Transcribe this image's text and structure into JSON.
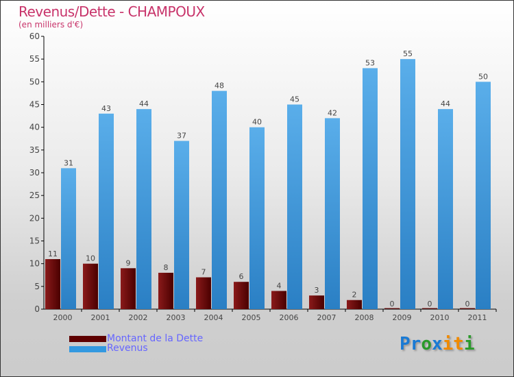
{
  "chart_data": {
    "type": "bar",
    "title": "Revenus/Dette - CHAMPOUX",
    "subtitle": "(en milliers d'€)",
    "categories": [
      "2000",
      "2001",
      "2002",
      "2003",
      "2004",
      "2005",
      "2006",
      "2007",
      "2008",
      "2009",
      "2010",
      "2011"
    ],
    "series": [
      {
        "name": "Montant de la Dette",
        "color": "#6b0a0a",
        "values": [
          11,
          10,
          9,
          8,
          7,
          6,
          4,
          3,
          2,
          0,
          0,
          0
        ]
      },
      {
        "name": "Revenus",
        "color": "#3a9be0",
        "values": [
          31,
          43,
          44,
          37,
          48,
          40,
          45,
          42,
          53,
          55,
          44,
          50
        ]
      }
    ],
    "ylim": [
      0,
      60
    ],
    "yticks": [
      0,
      5,
      10,
      15,
      20,
      25,
      30,
      35,
      40,
      45,
      50,
      55,
      60
    ],
    "legend": "bottom-left"
  },
  "logo": {
    "text": "Proxiti",
    "letters": [
      [
        "P",
        "#1a7ad4"
      ],
      [
        "r",
        "#1a7ad4"
      ],
      [
        "o",
        "#2a9a2a"
      ],
      [
        "x",
        "#1a7ad4"
      ],
      [
        "i",
        "#f08a00"
      ],
      [
        "t",
        "#f08a00"
      ],
      [
        "i",
        "#2a9a2a"
      ]
    ]
  }
}
